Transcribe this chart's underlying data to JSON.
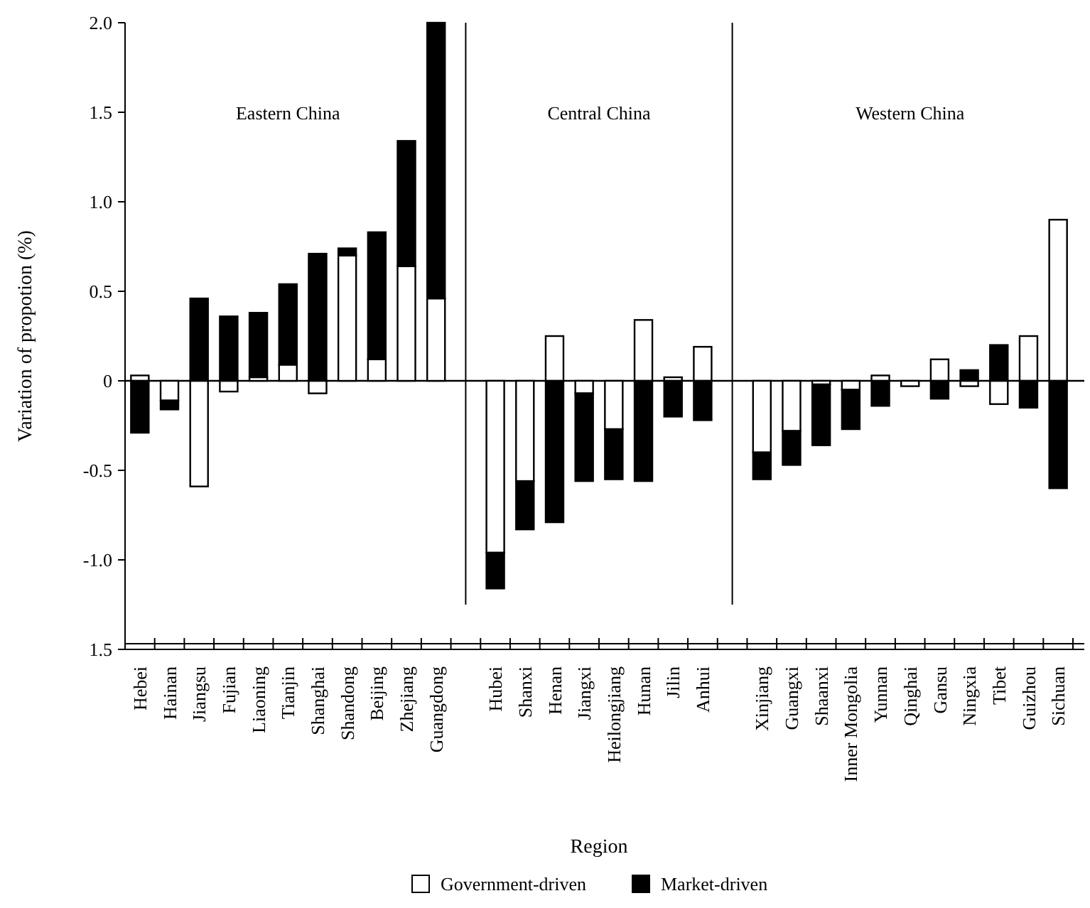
{
  "chart_data": {
    "type": "bar",
    "stacked": true,
    "xlabel": "Region",
    "ylabel": "Variation of propotion (%)",
    "categories": [
      "Hebei",
      "Hainan",
      "Jiangsu",
      "Fujian",
      "Liaoning",
      "Tianjin",
      "Shanghai",
      "Shandong",
      "Beijing",
      "Zhejiang",
      "Guangdong",
      null,
      "Hubei",
      "Shanxi",
      "Henan",
      "Jiangxi",
      "Heilongjiang",
      "Hunan",
      "Jilin",
      "Anhui",
      null,
      "Xinjiang",
      "Guangxi",
      "Shaanxi",
      "Inner Mongolia",
      "Yunnan",
      "Qinghai",
      "Gansu",
      "Ningxia",
      "Tibet",
      "Guizhou",
      "Sichuan"
    ],
    "series": [
      {
        "name": "Government-driven",
        "color": "#ffffff",
        "values": [
          0.03,
          -0.11,
          -0.59,
          -0.06,
          0.02,
          0.09,
          -0.07,
          0.7,
          0.12,
          0.64,
          0.46,
          null,
          -0.96,
          -0.56,
          0.25,
          -0.07,
          -0.27,
          0.34,
          0.02,
          0.19,
          null,
          -0.4,
          -0.28,
          -0.02,
          -0.05,
          0.03,
          -0.03,
          0.12,
          -0.03,
          -0.13,
          0.25,
          0.9
        ]
      },
      {
        "name": "Market-driven",
        "color": "#000000",
        "values": [
          -0.29,
          -0.05,
          0.46,
          0.36,
          0.36,
          0.45,
          0.71,
          0.04,
          0.71,
          0.7,
          1.54,
          null,
          -0.2,
          -0.27,
          -0.79,
          -0.49,
          -0.28,
          -0.56,
          -0.2,
          -0.22,
          null,
          -0.15,
          -0.19,
          -0.34,
          -0.22,
          -0.14,
          0,
          -0.1,
          0.06,
          0.2,
          -0.15,
          -0.6
        ]
      }
    ],
    "ylim": [
      -1.5,
      2.0
    ],
    "yticks": [
      {
        "value": -1.5,
        "label": "1.5"
      },
      {
        "value": -1.0,
        "label": "-1.0"
      },
      {
        "value": -0.5,
        "label": "-0.5"
      },
      0,
      {
        "value": 0.5,
        "label": "0.5"
      },
      {
        "value": 1.0,
        "label": "1.0"
      },
      {
        "value": 1.5,
        "label": "1.5"
      },
      {
        "value": 2.0,
        "label": "2.0"
      }
    ],
    "ref_lines": [
      {
        "axis": "y",
        "value": 0
      }
    ],
    "annotations": [
      "Eastern China",
      "Central China",
      "Western China"
    ],
    "legend": "bottom"
  }
}
